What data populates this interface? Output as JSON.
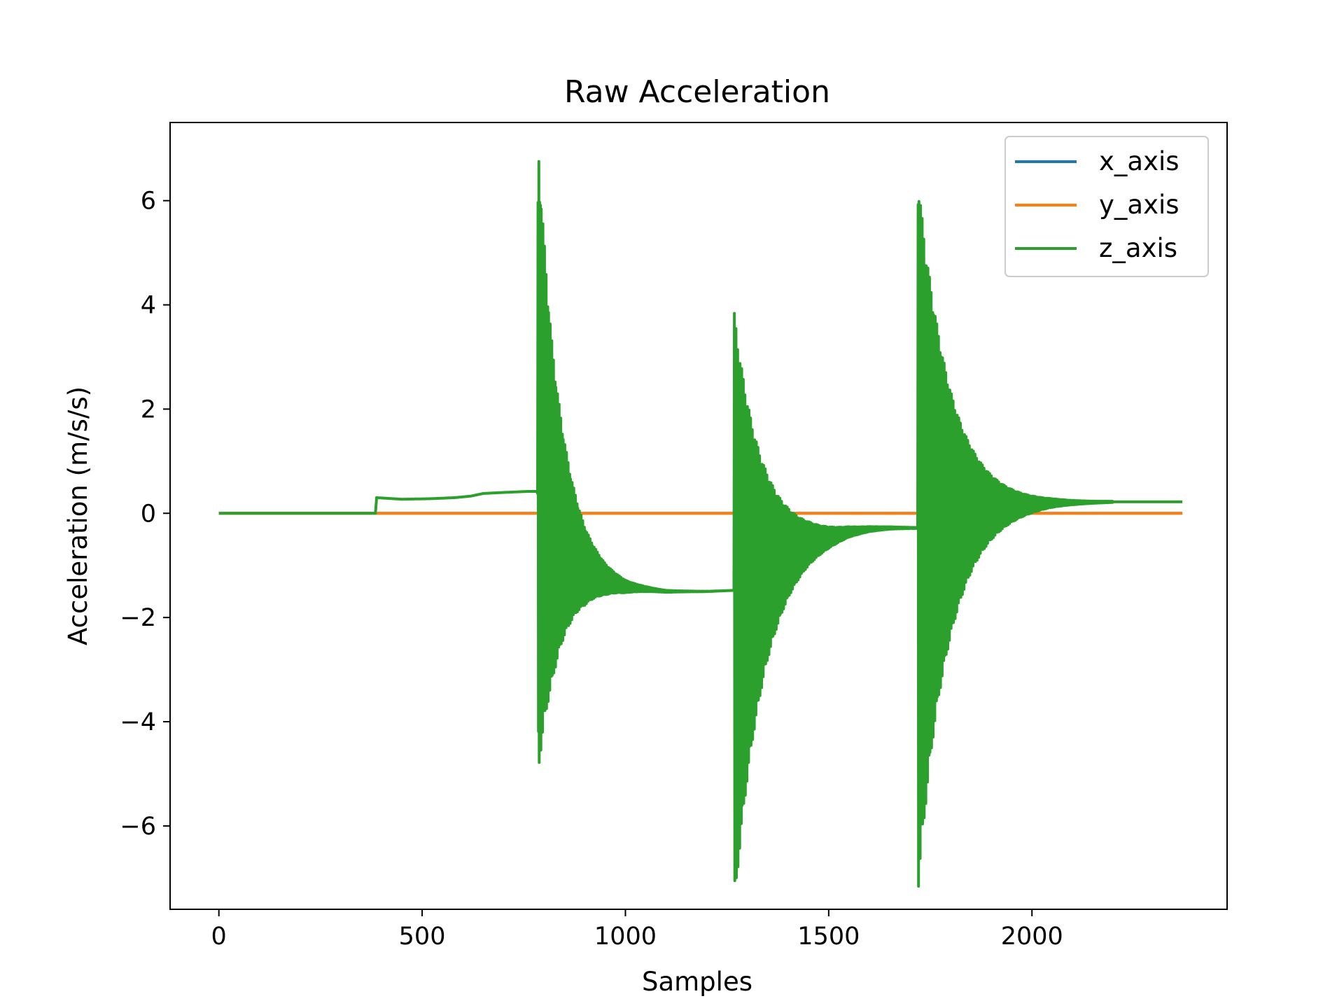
{
  "chart_data": {
    "type": "line",
    "title": "Raw Acceleration",
    "xlabel": "Samples",
    "ylabel": "Acceleration (m/s/s)",
    "xlim": [
      -120,
      2480
    ],
    "ylim": [
      -7.6,
      7.5
    ],
    "xticks": [
      0,
      500,
      1000,
      1500,
      2000
    ],
    "xtick_labels": [
      "0",
      "500",
      "1000",
      "1500",
      "2000"
    ],
    "yticks": [
      -6,
      -4,
      -2,
      0,
      2,
      4,
      6
    ],
    "ytick_labels": [
      "−6",
      "−4",
      "−2",
      "0",
      "2",
      "4",
      "6"
    ],
    "grid": false,
    "legend_position": "top-right",
    "x_range": [
      0,
      2370
    ],
    "series": [
      {
        "name": "x_axis",
        "color": "#1f77b4",
        "description": "constant at 0 (hidden beneath y_axis and z_axis)",
        "points": [
          [
            0,
            0
          ],
          [
            2370,
            0
          ]
        ]
      },
      {
        "name": "y_axis",
        "color": "#ff7f0e",
        "points": [
          [
            0,
            0
          ],
          [
            2370,
            0
          ]
        ]
      },
      {
        "name": "z_axis",
        "color": "#2ca02c",
        "baseline": [
          [
            0,
            0
          ],
          [
            385,
            0
          ],
          [
            388,
            0.3
          ],
          [
            450,
            0.27
          ],
          [
            520,
            0.28
          ],
          [
            580,
            0.3
          ],
          [
            620,
            0.33
          ],
          [
            650,
            0.38
          ],
          [
            700,
            0.4
          ],
          [
            760,
            0.42
          ],
          [
            782,
            0.42
          ],
          [
            820,
            -0.4
          ],
          [
            860,
            -0.8
          ],
          [
            900,
            -1.1
          ],
          [
            950,
            -1.3
          ],
          [
            1000,
            -1.42
          ],
          [
            1100,
            -1.5
          ],
          [
            1200,
            -1.5
          ],
          [
            1265,
            -1.48
          ],
          [
            1300,
            -1.2
          ],
          [
            1350,
            -0.9
          ],
          [
            1400,
            -0.7
          ],
          [
            1450,
            -0.55
          ],
          [
            1500,
            -0.45
          ],
          [
            1550,
            -0.35
          ],
          [
            1600,
            -0.3
          ],
          [
            1650,
            -0.28
          ],
          [
            1718,
            -0.28
          ],
          [
            1760,
            0
          ],
          [
            1850,
            0.1
          ],
          [
            1950,
            0.15
          ],
          [
            2050,
            0.2
          ],
          [
            2200,
            0.22
          ],
          [
            2370,
            0.22
          ]
        ],
        "bursts": [
          {
            "start": 785,
            "end": 1265,
            "peak_pos": 6.85,
            "peak_neg": -5.4,
            "decay": 55
          },
          {
            "start": 1268,
            "end": 1718,
            "peak_pos": 5.3,
            "peak_neg": -6.15,
            "decay": 70
          },
          {
            "start": 1720,
            "end": 2200,
            "peak_pos": 6.7,
            "peak_neg": -7.0,
            "decay": 75
          }
        ]
      }
    ]
  }
}
